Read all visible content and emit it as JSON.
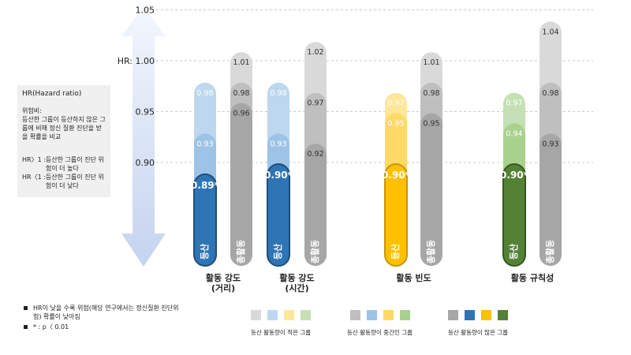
{
  "chart_data": {
    "type": "bar",
    "ylabel": "HR",
    "yticks": [
      {
        "v": 1.05,
        "label": "1.05"
      },
      {
        "v": 1.0,
        "label": "HR: 1.00"
      },
      {
        "v": 0.95,
        "label": "0.95"
      },
      {
        "v": 0.9,
        "label": "0.90"
      }
    ],
    "ylim": [
      0.84,
      1.05
    ],
    "grid": true,
    "groups": [
      {
        "label": [
          "활동 강도",
          "(거리)"
        ],
        "hiking": {
          "label": "등산",
          "values": [
            0.98,
            0.93,
            0.89
          ],
          "sig": [
            false,
            false,
            true
          ],
          "colors": [
            "#bdd7ee",
            "#9dc3e6",
            "#2e75b6"
          ],
          "border": "#1f4e79"
        },
        "total": {
          "label": "총활동",
          "values": [
            1.01,
            0.98,
            0.96
          ]
        }
      },
      {
        "label": [
          "활동 강도",
          "(시간)"
        ],
        "hiking": {
          "label": "등산",
          "values": [
            0.98,
            0.93,
            0.9
          ],
          "sig": [
            false,
            false,
            true
          ],
          "colors": [
            "#bdd7ee",
            "#9dc3e6",
            "#2e75b6"
          ],
          "border": "#1f4e79"
        },
        "total": {
          "label": "총활동",
          "values": [
            1.02,
            0.97,
            0.92
          ]
        }
      },
      {
        "label": [
          "활동 빈도"
        ],
        "hiking": {
          "label": "등산",
          "values": [
            0.97,
            0.95,
            0.9
          ],
          "sig": [
            false,
            false,
            true
          ],
          "colors": [
            "#ffe699",
            "#ffd966",
            "#ffc000"
          ],
          "border": "#c99700"
        },
        "total": {
          "label": "총활동",
          "values": [
            1.01,
            0.98,
            0.95
          ]
        }
      },
      {
        "label": [
          "활동 규칙성"
        ],
        "hiking": {
          "label": "등산",
          "values": [
            0.97,
            0.94,
            0.9
          ],
          "sig": [
            false,
            false,
            true
          ],
          "colors": [
            "#c5e0b4",
            "#a9d18e",
            "#548235"
          ],
          "border": "#385723"
        },
        "total": {
          "label": "총활동",
          "values": [
            1.04,
            0.98,
            0.93
          ]
        }
      }
    ],
    "total_colors": [
      "#d9d9d9",
      "#bfbfbf",
      "#a6a6a6"
    ],
    "sig_mark": "*"
  },
  "info": {
    "title": "HR(Hazard ratio)",
    "def_label": "위험비:",
    "def_text": "등산한 그룹이 등산하지 않은 그룹에 비해 정신 질환 진단을 받을 확률을 비교",
    "gt_key": "HR〉1 : ",
    "gt_text": "등산한 그룹이 진단 위험이 더 높다",
    "lt_key": "HR〈1 : ",
    "lt_text": "등산한 그룹이 진단 위험이 더 낮다"
  },
  "notes": [
    "HR이 낮을 수록 위험(해당 연구에서는 정신질환 진단위험) 확률이 낮아짐",
    "* : p〈 0.01"
  ],
  "legend": [
    {
      "label": "등산 활동량이 적은 그룹",
      "colors": [
        "#d9d9d9",
        "#bdd7ee",
        "#ffe699",
        "#c5e0b4"
      ]
    },
    {
      "label": "등산 활동량이 중간인 그룹",
      "colors": [
        "#bfbfbf",
        "#9dc3e6",
        "#ffd966",
        "#a9d18e"
      ]
    },
    {
      "label": "등산 활동량이 많은 그룹",
      "colors": [
        "#a6a6a6",
        "#2e75b6",
        "#ffc000",
        "#548235"
      ]
    }
  ]
}
